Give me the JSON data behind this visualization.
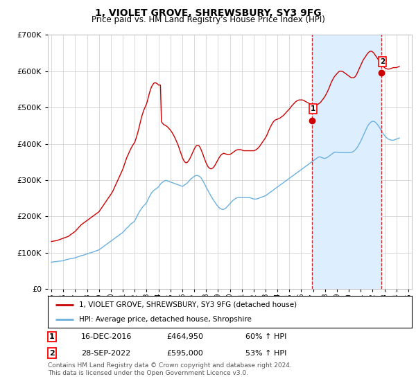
{
  "title": "1, VIOLET GROVE, SHREWSBURY, SY3 9FG",
  "subtitle": "Price paid vs. HM Land Registry's House Price Index (HPI)",
  "hpi_label": "HPI: Average price, detached house, Shropshire",
  "property_label": "1, VIOLET GROVE, SHREWSBURY, SY3 9FG (detached house)",
  "sale1_date": "16-DEC-2016",
  "sale1_price": 464950,
  "sale1_pct": "60% ↑ HPI",
  "sale2_date": "28-SEP-2022",
  "sale2_price": 595000,
  "sale2_pct": "53% ↑ HPI",
  "footnote1": "Contains HM Land Registry data © Crown copyright and database right 2024.",
  "footnote2": "This data is licensed under the Open Government Licence v3.0.",
  "hpi_color": "#6ab0de",
  "property_color": "#cc0000",
  "shade_color": "#ddeeff",
  "ylim_max": 700000,
  "sale1_x": 2016.917,
  "sale2_x": 2022.75,
  "xtick_years": [
    1995,
    1996,
    1997,
    1998,
    1999,
    2000,
    2001,
    2002,
    2003,
    2004,
    2005,
    2006,
    2007,
    2008,
    2009,
    2010,
    2011,
    2012,
    2013,
    2014,
    2015,
    2016,
    2017,
    2018,
    2019,
    2020,
    2021,
    2022,
    2023,
    2024,
    2025
  ],
  "hpi_dates": [
    1995.0,
    1995.083,
    1995.167,
    1995.25,
    1995.333,
    1995.417,
    1995.5,
    1995.583,
    1995.667,
    1995.75,
    1995.833,
    1995.917,
    1996.0,
    1996.083,
    1996.167,
    1996.25,
    1996.333,
    1996.417,
    1996.5,
    1996.583,
    1996.667,
    1996.75,
    1996.833,
    1996.917,
    1997.0,
    1997.083,
    1997.167,
    1997.25,
    1997.333,
    1997.417,
    1997.5,
    1997.583,
    1997.667,
    1997.75,
    1997.833,
    1997.917,
    1998.0,
    1998.083,
    1998.167,
    1998.25,
    1998.333,
    1998.417,
    1998.5,
    1998.583,
    1998.667,
    1998.75,
    1998.833,
    1998.917,
    1999.0,
    1999.083,
    1999.167,
    1999.25,
    1999.333,
    1999.417,
    1999.5,
    1999.583,
    1999.667,
    1999.75,
    1999.833,
    1999.917,
    2000.0,
    2000.083,
    2000.167,
    2000.25,
    2000.333,
    2000.417,
    2000.5,
    2000.583,
    2000.667,
    2000.75,
    2000.833,
    2000.917,
    2001.0,
    2001.083,
    2001.167,
    2001.25,
    2001.333,
    2001.417,
    2001.5,
    2001.583,
    2001.667,
    2001.75,
    2001.833,
    2001.917,
    2002.0,
    2002.083,
    2002.167,
    2002.25,
    2002.333,
    2002.417,
    2002.5,
    2002.583,
    2002.667,
    2002.75,
    2002.833,
    2002.917,
    2003.0,
    2003.083,
    2003.167,
    2003.25,
    2003.333,
    2003.417,
    2003.5,
    2003.583,
    2003.667,
    2003.75,
    2003.833,
    2003.917,
    2004.0,
    2004.083,
    2004.167,
    2004.25,
    2004.333,
    2004.417,
    2004.5,
    2004.583,
    2004.667,
    2004.75,
    2004.833,
    2004.917,
    2005.0,
    2005.083,
    2005.167,
    2005.25,
    2005.333,
    2005.417,
    2005.5,
    2005.583,
    2005.667,
    2005.75,
    2005.833,
    2005.917,
    2006.0,
    2006.083,
    2006.167,
    2006.25,
    2006.333,
    2006.417,
    2006.5,
    2006.583,
    2006.667,
    2006.75,
    2006.833,
    2006.917,
    2007.0,
    2007.083,
    2007.167,
    2007.25,
    2007.333,
    2007.417,
    2007.5,
    2007.583,
    2007.667,
    2007.75,
    2007.833,
    2007.917,
    2008.0,
    2008.083,
    2008.167,
    2008.25,
    2008.333,
    2008.417,
    2008.5,
    2008.583,
    2008.667,
    2008.75,
    2008.833,
    2008.917,
    2009.0,
    2009.083,
    2009.167,
    2009.25,
    2009.333,
    2009.417,
    2009.5,
    2009.583,
    2009.667,
    2009.75,
    2009.833,
    2009.917,
    2010.0,
    2010.083,
    2010.167,
    2010.25,
    2010.333,
    2010.417,
    2010.5,
    2010.583,
    2010.667,
    2010.75,
    2010.833,
    2010.917,
    2011.0,
    2011.083,
    2011.167,
    2011.25,
    2011.333,
    2011.417,
    2011.5,
    2011.583,
    2011.667,
    2011.75,
    2011.833,
    2011.917,
    2012.0,
    2012.083,
    2012.167,
    2012.25,
    2012.333,
    2012.417,
    2012.5,
    2012.583,
    2012.667,
    2012.75,
    2012.833,
    2012.917,
    2013.0,
    2013.083,
    2013.167,
    2013.25,
    2013.333,
    2013.417,
    2013.5,
    2013.583,
    2013.667,
    2013.75,
    2013.833,
    2013.917,
    2014.0,
    2014.083,
    2014.167,
    2014.25,
    2014.333,
    2014.417,
    2014.5,
    2014.583,
    2014.667,
    2014.75,
    2014.833,
    2014.917,
    2015.0,
    2015.083,
    2015.167,
    2015.25,
    2015.333,
    2015.417,
    2015.5,
    2015.583,
    2015.667,
    2015.75,
    2015.833,
    2015.917,
    2016.0,
    2016.083,
    2016.167,
    2016.25,
    2016.333,
    2016.417,
    2016.5,
    2016.583,
    2016.667,
    2016.75,
    2016.833,
    2016.917,
    2017.0,
    2017.083,
    2017.167,
    2017.25,
    2017.333,
    2017.417,
    2017.5,
    2017.583,
    2017.667,
    2017.75,
    2017.833,
    2017.917,
    2018.0,
    2018.083,
    2018.167,
    2018.25,
    2018.333,
    2018.417,
    2018.5,
    2018.583,
    2018.667,
    2018.75,
    2018.833,
    2018.917,
    2019.0,
    2019.083,
    2019.167,
    2019.25,
    2019.333,
    2019.417,
    2019.5,
    2019.583,
    2019.667,
    2019.75,
    2019.833,
    2019.917,
    2020.0,
    2020.083,
    2020.167,
    2020.25,
    2020.333,
    2020.417,
    2020.5,
    2020.583,
    2020.667,
    2020.75,
    2020.833,
    2020.917,
    2021.0,
    2021.083,
    2021.167,
    2021.25,
    2021.333,
    2021.417,
    2021.5,
    2021.583,
    2021.667,
    2021.75,
    2021.833,
    2021.917,
    2022.0,
    2022.083,
    2022.167,
    2022.25,
    2022.333,
    2022.417,
    2022.5,
    2022.583,
    2022.667,
    2022.75,
    2022.833,
    2022.917,
    2023.0,
    2023.083,
    2023.167,
    2023.25,
    2023.333,
    2023.417,
    2023.5,
    2023.583,
    2023.667,
    2023.75,
    2023.833,
    2023.917,
    2024.0,
    2024.083,
    2024.167,
    2024.25
  ],
  "hpi_values": [
    74000,
    74500,
    75000,
    75200,
    75400,
    75600,
    76000,
    76500,
    77000,
    77200,
    77400,
    77600,
    78000,
    79000,
    80000,
    81000,
    81500,
    82000,
    83000,
    83500,
    84000,
    84500,
    85000,
    85500,
    86000,
    87000,
    88000,
    89000,
    90000,
    91000,
    92000,
    92500,
    93000,
    94000,
    95000,
    96000,
    97000,
    98000,
    99000,
    99500,
    100000,
    101000,
    102000,
    103000,
    104000,
    105000,
    106000,
    107000,
    108000,
    110000,
    112000,
    114000,
    116000,
    118000,
    120000,
    122000,
    124000,
    126000,
    128000,
    130000,
    132000,
    134000,
    136000,
    138000,
    140000,
    142000,
    144000,
    146000,
    148000,
    150000,
    152000,
    154000,
    156000,
    159000,
    162000,
    165000,
    168000,
    170000,
    173000,
    176000,
    179000,
    181000,
    183000,
    185000,
    188000,
    193000,
    198000,
    204000,
    209000,
    214000,
    218000,
    222000,
    226000,
    229000,
    232000,
    235000,
    238000,
    244000,
    250000,
    255000,
    260000,
    265000,
    268000,
    271000,
    273000,
    275000,
    277000,
    279000,
    281000,
    285000,
    289000,
    292000,
    294000,
    296000,
    298000,
    299000,
    299000,
    298000,
    297000,
    296000,
    295000,
    294000,
    293000,
    292000,
    291000,
    290000,
    289000,
    288000,
    287000,
    286000,
    285000,
    284000,
    283000,
    284000,
    286000,
    288000,
    290000,
    292000,
    295000,
    298000,
    301000,
    304000,
    306000,
    308000,
    310000,
    312000,
    313000,
    313000,
    312000,
    311000,
    309000,
    306000,
    302000,
    297000,
    292000,
    287000,
    281000,
    276000,
    271000,
    266000,
    261000,
    256000,
    252000,
    247000,
    243000,
    239000,
    235000,
    231000,
    228000,
    225000,
    222000,
    221000,
    220000,
    219000,
    220000,
    221000,
    223000,
    226000,
    229000,
    232000,
    235000,
    238000,
    241000,
    244000,
    246000,
    248000,
    250000,
    251000,
    252000,
    252000,
    252000,
    252000,
    252000,
    252000,
    252000,
    252000,
    252000,
    252000,
    252000,
    252000,
    252000,
    251000,
    250000,
    249000,
    248000,
    248000,
    248000,
    248000,
    249000,
    250000,
    251000,
    252000,
    253000,
    254000,
    255000,
    256000,
    257000,
    259000,
    261000,
    263000,
    265000,
    267000,
    269000,
    271000,
    273000,
    275000,
    277000,
    279000,
    281000,
    283000,
    285000,
    287000,
    289000,
    291000,
    293000,
    295000,
    297000,
    299000,
    301000,
    303000,
    305000,
    307000,
    309000,
    311000,
    313000,
    315000,
    317000,
    319000,
    321000,
    323000,
    325000,
    327000,
    329000,
    331000,
    333000,
    335000,
    337000,
    339000,
    341000,
    343000,
    345000,
    347000,
    349000,
    351000,
    353000,
    355000,
    357000,
    359000,
    361000,
    363000,
    364000,
    364000,
    363000,
    362000,
    361000,
    360000,
    360000,
    361000,
    362000,
    364000,
    366000,
    368000,
    370000,
    372000,
    374000,
    376000,
    377000,
    377000,
    377000,
    377000,
    376000,
    376000,
    376000,
    376000,
    376000,
    376000,
    376000,
    376000,
    376000,
    376000,
    376000,
    376000,
    376000,
    377000,
    378000,
    380000,
    382000,
    385000,
    388000,
    392000,
    397000,
    402000,
    407000,
    413000,
    419000,
    425000,
    431000,
    437000,
    443000,
    449000,
    453000,
    456000,
    459000,
    461000,
    462000,
    462000,
    461000,
    459000,
    456000,
    453000,
    449000,
    445000,
    440000,
    436000,
    431000,
    427000,
    423000,
    420000,
    417000,
    415000,
    413000,
    412000,
    411000,
    410000,
    410000,
    410000,
    411000,
    412000,
    413000,
    414000,
    415000,
    416000
  ],
  "prop_dates": [
    1995.0,
    1995.083,
    1995.167,
    1995.25,
    1995.333,
    1995.417,
    1995.5,
    1995.583,
    1995.667,
    1995.75,
    1995.833,
    1995.917,
    1996.0,
    1996.083,
    1996.167,
    1996.25,
    1996.333,
    1996.417,
    1996.5,
    1996.583,
    1996.667,
    1996.75,
    1996.833,
    1996.917,
    1997.0,
    1997.083,
    1997.167,
    1997.25,
    1997.333,
    1997.417,
    1997.5,
    1997.583,
    1997.667,
    1997.75,
    1997.833,
    1997.917,
    1998.0,
    1998.083,
    1998.167,
    1998.25,
    1998.333,
    1998.417,
    1998.5,
    1998.583,
    1998.667,
    1998.75,
    1998.833,
    1998.917,
    1999.0,
    1999.083,
    1999.167,
    1999.25,
    1999.333,
    1999.417,
    1999.5,
    1999.583,
    1999.667,
    1999.75,
    1999.833,
    1999.917,
    2000.0,
    2000.083,
    2000.167,
    2000.25,
    2000.333,
    2000.417,
    2000.5,
    2000.583,
    2000.667,
    2000.75,
    2000.833,
    2000.917,
    2001.0,
    2001.083,
    2001.167,
    2001.25,
    2001.333,
    2001.417,
    2001.5,
    2001.583,
    2001.667,
    2001.75,
    2001.833,
    2001.917,
    2002.0,
    2002.083,
    2002.167,
    2002.25,
    2002.333,
    2002.417,
    2002.5,
    2002.583,
    2002.667,
    2002.75,
    2002.833,
    2002.917,
    2003.0,
    2003.083,
    2003.167,
    2003.25,
    2003.333,
    2003.417,
    2003.5,
    2003.583,
    2003.667,
    2003.75,
    2003.833,
    2003.917,
    2004.0,
    2004.083,
    2004.167,
    2004.25,
    2004.333,
    2004.417,
    2004.5,
    2004.583,
    2004.667,
    2004.75,
    2004.833,
    2004.917,
    2005.0,
    2005.083,
    2005.167,
    2005.25,
    2005.333,
    2005.417,
    2005.5,
    2005.583,
    2005.667,
    2005.75,
    2005.833,
    2005.917,
    2006.0,
    2006.083,
    2006.167,
    2006.25,
    2006.333,
    2006.417,
    2006.5,
    2006.583,
    2006.667,
    2006.75,
    2006.833,
    2006.917,
    2007.0,
    2007.083,
    2007.167,
    2007.25,
    2007.333,
    2007.417,
    2007.5,
    2007.583,
    2007.667,
    2007.75,
    2007.833,
    2007.917,
    2008.0,
    2008.083,
    2008.167,
    2008.25,
    2008.333,
    2008.417,
    2008.5,
    2008.583,
    2008.667,
    2008.75,
    2008.833,
    2008.917,
    2009.0,
    2009.083,
    2009.167,
    2009.25,
    2009.333,
    2009.417,
    2009.5,
    2009.583,
    2009.667,
    2009.75,
    2009.833,
    2009.917,
    2010.0,
    2010.083,
    2010.167,
    2010.25,
    2010.333,
    2010.417,
    2010.5,
    2010.583,
    2010.667,
    2010.75,
    2010.833,
    2010.917,
    2011.0,
    2011.083,
    2011.167,
    2011.25,
    2011.333,
    2011.417,
    2011.5,
    2011.583,
    2011.667,
    2011.75,
    2011.833,
    2011.917,
    2012.0,
    2012.083,
    2012.167,
    2012.25,
    2012.333,
    2012.417,
    2012.5,
    2012.583,
    2012.667,
    2012.75,
    2012.833,
    2012.917,
    2013.0,
    2013.083,
    2013.167,
    2013.25,
    2013.333,
    2013.417,
    2013.5,
    2013.583,
    2013.667,
    2013.75,
    2013.833,
    2013.917,
    2014.0,
    2014.083,
    2014.167,
    2014.25,
    2014.333,
    2014.417,
    2014.5,
    2014.583,
    2014.667,
    2014.75,
    2014.833,
    2014.917,
    2015.0,
    2015.083,
    2015.167,
    2015.25,
    2015.333,
    2015.417,
    2015.5,
    2015.583,
    2015.667,
    2015.75,
    2015.833,
    2015.917,
    2016.0,
    2016.083,
    2016.167,
    2016.25,
    2016.333,
    2016.417,
    2016.5,
    2016.583,
    2016.667,
    2016.75,
    2016.833,
    2016.917,
    2017.0,
    2017.083,
    2017.167,
    2017.25,
    2017.333,
    2017.417,
    2017.5,
    2017.583,
    2017.667,
    2017.75,
    2017.833,
    2017.917,
    2018.0,
    2018.083,
    2018.167,
    2018.25,
    2018.333,
    2018.417,
    2018.5,
    2018.583,
    2018.667,
    2018.75,
    2018.833,
    2018.917,
    2019.0,
    2019.083,
    2019.167,
    2019.25,
    2019.333,
    2019.417,
    2019.5,
    2019.583,
    2019.667,
    2019.75,
    2019.833,
    2019.917,
    2020.0,
    2020.083,
    2020.167,
    2020.25,
    2020.333,
    2020.417,
    2020.5,
    2020.583,
    2020.667,
    2020.75,
    2020.833,
    2020.917,
    2021.0,
    2021.083,
    2021.167,
    2021.25,
    2021.333,
    2021.417,
    2021.5,
    2021.583,
    2021.667,
    2021.75,
    2021.833,
    2021.917,
    2022.0,
    2022.083,
    2022.167,
    2022.25,
    2022.333,
    2022.417,
    2022.5,
    2022.583,
    2022.667,
    2022.75,
    2022.833,
    2022.917,
    2023.0,
    2023.083,
    2023.167,
    2023.25,
    2023.333,
    2023.417,
    2023.5,
    2023.583,
    2023.667,
    2023.75,
    2023.833,
    2023.917,
    2024.0,
    2024.083,
    2024.167,
    2024.25
  ],
  "prop_values": [
    131000,
    131500,
    132000,
    132500,
    133000,
    133500,
    134000,
    135000,
    136000,
    137000,
    138000,
    139000,
    140000,
    141000,
    142000,
    143000,
    144000,
    145000,
    147000,
    149000,
    151000,
    153000,
    155000,
    157000,
    159000,
    162000,
    165000,
    168000,
    171000,
    174000,
    177000,
    179000,
    181000,
    183000,
    185000,
    187000,
    189000,
    191000,
    193000,
    195000,
    197000,
    199000,
    201000,
    203000,
    205000,
    207000,
    209000,
    211000,
    213000,
    217000,
    221000,
    225000,
    229000,
    233000,
    237000,
    241000,
    245000,
    249000,
    253000,
    257000,
    261000,
    265000,
    270000,
    276000,
    282000,
    288000,
    294000,
    300000,
    306000,
    312000,
    318000,
    324000,
    330000,
    338000,
    346000,
    354000,
    362000,
    368000,
    374000,
    380000,
    386000,
    391000,
    396000,
    400000,
    404000,
    412000,
    420000,
    430000,
    440000,
    452000,
    463000,
    474000,
    483000,
    491000,
    498000,
    504000,
    510000,
    520000,
    531000,
    541000,
    550000,
    557000,
    562000,
    566000,
    568000,
    568000,
    567000,
    565000,
    562000,
    562000,
    562000,
    461000,
    457000,
    454000,
    452000,
    451000,
    449000,
    447000,
    444000,
    441000,
    438000,
    434000,
    430000,
    425000,
    420000,
    414000,
    408000,
    402000,
    395000,
    387000,
    379000,
    371000,
    363000,
    357000,
    352000,
    349000,
    348000,
    349000,
    352000,
    356000,
    361000,
    367000,
    373000,
    379000,
    385000,
    390000,
    394000,
    396000,
    396000,
    394000,
    390000,
    384000,
    377000,
    370000,
    362000,
    355000,
    348000,
    342000,
    337000,
    334000,
    332000,
    331000,
    332000,
    334000,
    337000,
    341000,
    346000,
    351000,
    356000,
    361000,
    365000,
    369000,
    371000,
    373000,
    374000,
    373000,
    372000,
    371000,
    370000,
    370000,
    371000,
    372000,
    374000,
    376000,
    378000,
    380000,
    382000,
    383000,
    384000,
    384000,
    384000,
    384000,
    383000,
    382000,
    381000,
    381000,
    381000,
    381000,
    381000,
    381000,
    381000,
    381000,
    381000,
    381000,
    381000,
    382000,
    383000,
    385000,
    387000,
    390000,
    393000,
    397000,
    401000,
    405000,
    409000,
    413000,
    417000,
    422000,
    428000,
    435000,
    441000,
    447000,
    452000,
    457000,
    461000,
    464000,
    466000,
    467000,
    468000,
    469000,
    470000,
    472000,
    474000,
    476000,
    478000,
    481000,
    484000,
    487000,
    490000,
    493000,
    496000,
    499000,
    503000,
    506000,
    509000,
    512000,
    515000,
    517000,
    519000,
    520000,
    521000,
    521000,
    521000,
    521000,
    520000,
    519000,
    517000,
    516000,
    514000,
    513000,
    511000,
    510000,
    509000,
    508000,
    507000,
    507000,
    507000,
    507000,
    508000,
    509000,
    511000,
    513000,
    516000,
    520000,
    523000,
    527000,
    531000,
    536000,
    541000,
    547000,
    553000,
    560000,
    567000,
    573000,
    578000,
    583000,
    587000,
    590000,
    593000,
    596000,
    599000,
    600000,
    600000,
    600000,
    599000,
    597000,
    595000,
    593000,
    591000,
    589000,
    587000,
    585000,
    583000,
    582000,
    582000,
    582000,
    584000,
    587000,
    592000,
    598000,
    604000,
    610000,
    616000,
    622000,
    628000,
    633000,
    637000,
    641000,
    645000,
    649000,
    652000,
    654000,
    655000,
    655000,
    653000,
    651000,
    647000,
    643000,
    639000,
    635000,
    631000,
    627000,
    623000,
    619000,
    615000,
    612000,
    610000,
    608000,
    607000,
    606000,
    606000,
    606000,
    607000,
    608000,
    609000,
    610000,
    610000,
    610000,
    610000,
    611000,
    612000,
    613000
  ]
}
